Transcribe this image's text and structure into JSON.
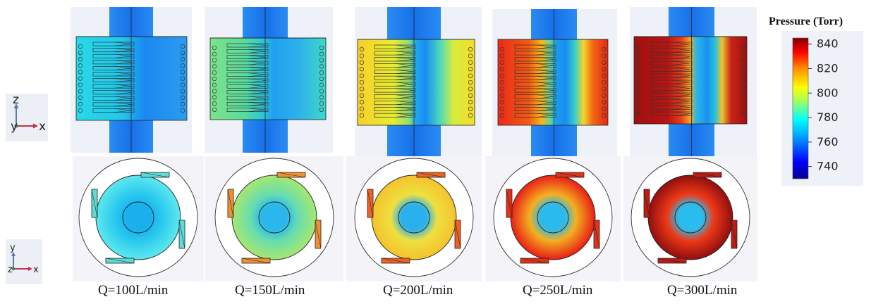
{
  "colorbar": {
    "title": "Pressure (Torr)",
    "ticks": [
      "840",
      "820",
      "800",
      "780",
      "760",
      "740"
    ],
    "tick_values": [
      840,
      820,
      800,
      780,
      760,
      740
    ],
    "range": [
      730,
      845
    ],
    "colors": [
      "#00008f",
      "#0000ff",
      "#00a0ff",
      "#00ffff",
      "#a0ff60",
      "#ffff00",
      "#ff9000",
      "#ff0000",
      "#800000"
    ]
  },
  "axes_side": {
    "axes": [
      "z",
      "y",
      "x"
    ]
  },
  "axes_top": {
    "axes": [
      "y",
      "z",
      "x"
    ]
  },
  "cases": [
    {
      "caption": "Q=100L/min",
      "flow_rate": 100
    },
    {
      "caption": "Q=150L/min",
      "flow_rate": 150
    },
    {
      "caption": "Q=200L/min",
      "flow_rate": 200
    },
    {
      "caption": "Q=250L/min",
      "flow_rate": 250
    },
    {
      "caption": "Q=300L/min",
      "flow_rate": 300
    }
  ]
}
